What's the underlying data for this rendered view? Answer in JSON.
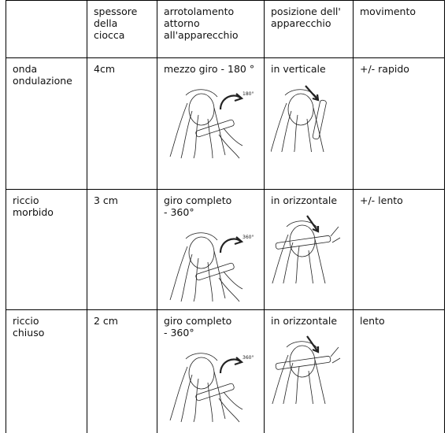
{
  "table": {
    "header": [
      "spessore\ndella\nciocca",
      "arrotolamento\nattorno\nall'apparecchio",
      "posizione dell'\napparecchio",
      "movimento"
    ],
    "rows": [
      {
        "type": "onda\nondulazione",
        "thickness": "4cm",
        "winding": "mezzo giro - 180 °",
        "angle": "180°",
        "position": "in verticale",
        "movement": "+/- rapido"
      },
      {
        "type": "riccio\nmorbido",
        "thickness": "3 cm",
        "winding": "giro completo\n- 360°",
        "angle": "360°",
        "position": "in orizzontale",
        "movement": "+/- lento"
      },
      {
        "type": "riccio\nchiuso",
        "thickness": "2 cm",
        "winding": "giro completo\n- 360°",
        "angle": "360°",
        "position": "in orizzontale",
        "movement": "lento"
      }
    ]
  }
}
